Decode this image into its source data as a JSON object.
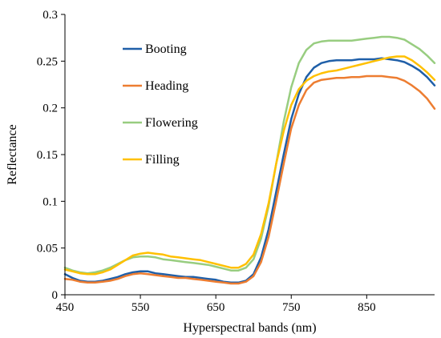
{
  "chart_data": {
    "type": "line",
    "xlabel": "Hyperspectral bands (nm)",
    "ylabel": "Reflectance",
    "xlim": [
      450,
      940
    ],
    "ylim": [
      0,
      0.3
    ],
    "xticks": [
      "450",
      "550",
      "650",
      "750",
      "850"
    ],
    "yticks": [
      "0",
      "0.05",
      "0.1",
      "0.15",
      "0.2",
      "0.25",
      "0.3"
    ],
    "xtick_values": [
      450,
      550,
      650,
      750,
      850
    ],
    "ytick_values": [
      0,
      0.05,
      0.1,
      0.15,
      0.2,
      0.25,
      0.3
    ],
    "grid": false,
    "legend_position": "top-left",
    "series": [
      {
        "name": "Booting",
        "color": "#1f5fa8",
        "points": [
          [
            450,
            0.022
          ],
          [
            460,
            0.018
          ],
          [
            470,
            0.015
          ],
          [
            480,
            0.014
          ],
          [
            490,
            0.014
          ],
          [
            500,
            0.015
          ],
          [
            510,
            0.017
          ],
          [
            520,
            0.019
          ],
          [
            530,
            0.022
          ],
          [
            540,
            0.024
          ],
          [
            550,
            0.025
          ],
          [
            560,
            0.025
          ],
          [
            570,
            0.023
          ],
          [
            580,
            0.022
          ],
          [
            590,
            0.021
          ],
          [
            600,
            0.02
          ],
          [
            610,
            0.019
          ],
          [
            620,
            0.019
          ],
          [
            630,
            0.018
          ],
          [
            640,
            0.017
          ],
          [
            650,
            0.016
          ],
          [
            660,
            0.014
          ],
          [
            670,
            0.013
          ],
          [
            680,
            0.013
          ],
          [
            690,
            0.015
          ],
          [
            700,
            0.022
          ],
          [
            710,
            0.04
          ],
          [
            720,
            0.07
          ],
          [
            730,
            0.11
          ],
          [
            740,
            0.15
          ],
          [
            750,
            0.188
          ],
          [
            760,
            0.215
          ],
          [
            770,
            0.233
          ],
          [
            780,
            0.243
          ],
          [
            790,
            0.248
          ],
          [
            800,
            0.25
          ],
          [
            810,
            0.251
          ],
          [
            820,
            0.251
          ],
          [
            830,
            0.251
          ],
          [
            840,
            0.252
          ],
          [
            850,
            0.252
          ],
          [
            860,
            0.252
          ],
          [
            870,
            0.253
          ],
          [
            880,
            0.252
          ],
          [
            890,
            0.251
          ],
          [
            900,
            0.249
          ],
          [
            910,
            0.245
          ],
          [
            920,
            0.24
          ],
          [
            930,
            0.233
          ],
          [
            940,
            0.224
          ]
        ]
      },
      {
        "name": "Heading",
        "color": "#ed7d31",
        "points": [
          [
            450,
            0.017
          ],
          [
            460,
            0.016
          ],
          [
            470,
            0.014
          ],
          [
            480,
            0.013
          ],
          [
            490,
            0.013
          ],
          [
            500,
            0.014
          ],
          [
            510,
            0.015
          ],
          [
            520,
            0.017
          ],
          [
            530,
            0.02
          ],
          [
            540,
            0.022
          ],
          [
            550,
            0.023
          ],
          [
            560,
            0.022
          ],
          [
            570,
            0.021
          ],
          [
            580,
            0.02
          ],
          [
            590,
            0.019
          ],
          [
            600,
            0.018
          ],
          [
            610,
            0.018
          ],
          [
            620,
            0.017
          ],
          [
            630,
            0.016
          ],
          [
            640,
            0.015
          ],
          [
            650,
            0.014
          ],
          [
            660,
            0.013
          ],
          [
            670,
            0.012
          ],
          [
            680,
            0.012
          ],
          [
            690,
            0.014
          ],
          [
            700,
            0.02
          ],
          [
            710,
            0.035
          ],
          [
            720,
            0.062
          ],
          [
            730,
            0.1
          ],
          [
            740,
            0.14
          ],
          [
            750,
            0.178
          ],
          [
            760,
            0.203
          ],
          [
            770,
            0.219
          ],
          [
            780,
            0.227
          ],
          [
            790,
            0.23
          ],
          [
            800,
            0.231
          ],
          [
            810,
            0.232
          ],
          [
            820,
            0.232
          ],
          [
            830,
            0.233
          ],
          [
            840,
            0.233
          ],
          [
            850,
            0.234
          ],
          [
            860,
            0.234
          ],
          [
            870,
            0.234
          ],
          [
            880,
            0.233
          ],
          [
            890,
            0.232
          ],
          [
            900,
            0.229
          ],
          [
            910,
            0.224
          ],
          [
            920,
            0.218
          ],
          [
            930,
            0.21
          ],
          [
            940,
            0.199
          ]
        ]
      },
      {
        "name": "Flowering",
        "color": "#98cd80",
        "points": [
          [
            450,
            0.029
          ],
          [
            460,
            0.026
          ],
          [
            470,
            0.024
          ],
          [
            480,
            0.023
          ],
          [
            490,
            0.024
          ],
          [
            500,
            0.026
          ],
          [
            510,
            0.029
          ],
          [
            520,
            0.033
          ],
          [
            530,
            0.037
          ],
          [
            540,
            0.04
          ],
          [
            550,
            0.041
          ],
          [
            560,
            0.041
          ],
          [
            570,
            0.04
          ],
          [
            580,
            0.038
          ],
          [
            590,
            0.037
          ],
          [
            600,
            0.036
          ],
          [
            610,
            0.035
          ],
          [
            620,
            0.034
          ],
          [
            630,
            0.033
          ],
          [
            640,
            0.032
          ],
          [
            650,
            0.03
          ],
          [
            660,
            0.028
          ],
          [
            670,
            0.026
          ],
          [
            680,
            0.026
          ],
          [
            690,
            0.029
          ],
          [
            700,
            0.038
          ],
          [
            710,
            0.06
          ],
          [
            720,
            0.095
          ],
          [
            730,
            0.14
          ],
          [
            740,
            0.185
          ],
          [
            750,
            0.222
          ],
          [
            760,
            0.248
          ],
          [
            770,
            0.262
          ],
          [
            780,
            0.269
          ],
          [
            790,
            0.271
          ],
          [
            800,
            0.272
          ],
          [
            810,
            0.272
          ],
          [
            820,
            0.272
          ],
          [
            830,
            0.272
          ],
          [
            840,
            0.273
          ],
          [
            850,
            0.274
          ],
          [
            860,
            0.275
          ],
          [
            870,
            0.276
          ],
          [
            880,
            0.276
          ],
          [
            890,
            0.275
          ],
          [
            900,
            0.273
          ],
          [
            910,
            0.268
          ],
          [
            920,
            0.263
          ],
          [
            930,
            0.256
          ],
          [
            940,
            0.248
          ]
        ]
      },
      {
        "name": "Filling",
        "color": "#ffc000",
        "points": [
          [
            450,
            0.027
          ],
          [
            460,
            0.025
          ],
          [
            470,
            0.023
          ],
          [
            480,
            0.022
          ],
          [
            490,
            0.022
          ],
          [
            500,
            0.024
          ],
          [
            510,
            0.027
          ],
          [
            520,
            0.032
          ],
          [
            530,
            0.037
          ],
          [
            540,
            0.042
          ],
          [
            550,
            0.044
          ],
          [
            560,
            0.045
          ],
          [
            570,
            0.044
          ],
          [
            580,
            0.043
          ],
          [
            590,
            0.041
          ],
          [
            600,
            0.04
          ],
          [
            610,
            0.039
          ],
          [
            620,
            0.038
          ],
          [
            630,
            0.037
          ],
          [
            640,
            0.035
          ],
          [
            650,
            0.033
          ],
          [
            660,
            0.031
          ],
          [
            670,
            0.029
          ],
          [
            680,
            0.029
          ],
          [
            690,
            0.033
          ],
          [
            700,
            0.043
          ],
          [
            710,
            0.065
          ],
          [
            720,
            0.098
          ],
          [
            730,
            0.14
          ],
          [
            740,
            0.175
          ],
          [
            750,
            0.203
          ],
          [
            760,
            0.22
          ],
          [
            770,
            0.229
          ],
          [
            780,
            0.234
          ],
          [
            790,
            0.237
          ],
          [
            800,
            0.239
          ],
          [
            810,
            0.24
          ],
          [
            820,
            0.242
          ],
          [
            830,
            0.244
          ],
          [
            840,
            0.246
          ],
          [
            850,
            0.248
          ],
          [
            860,
            0.25
          ],
          [
            870,
            0.252
          ],
          [
            880,
            0.254
          ],
          [
            890,
            0.255
          ],
          [
            900,
            0.255
          ],
          [
            910,
            0.251
          ],
          [
            920,
            0.245
          ],
          [
            930,
            0.238
          ],
          [
            940,
            0.23
          ]
        ]
      }
    ]
  }
}
